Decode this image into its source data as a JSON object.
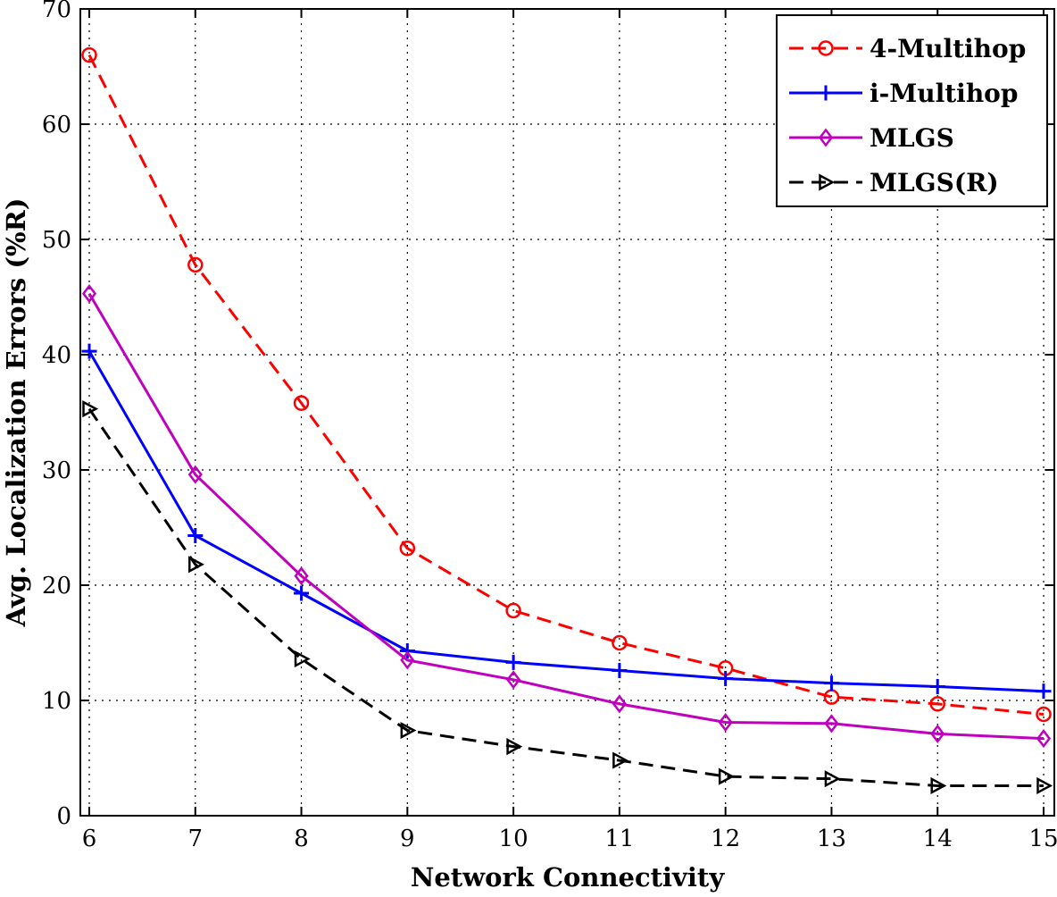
{
  "chart_data": {
    "type": "line",
    "title": "",
    "xlabel": "Network Connectivity",
    "ylabel": "Avg. Localization Errors (%R)",
    "xlim": [
      6,
      15
    ],
    "ylim": [
      0,
      70
    ],
    "xticks": [
      6,
      7,
      8,
      9,
      10,
      11,
      12,
      13,
      14,
      15
    ],
    "yticks": [
      0,
      10,
      20,
      30,
      40,
      50,
      60,
      70
    ],
    "grid": true,
    "legend_position": "top-right",
    "x": [
      6,
      7,
      8,
      9,
      10,
      11,
      12,
      13,
      14,
      15
    ],
    "series": [
      {
        "name": "4-Multihop",
        "color": "#ff0000",
        "line_style": "dashed",
        "marker": "circle",
        "values": [
          66,
          47.8,
          35.8,
          23.2,
          17.8,
          15.0,
          12.8,
          10.3,
          9.7,
          8.8
        ]
      },
      {
        "name": "i-Multihop",
        "color": "#0000ff",
        "line_style": "solid",
        "marker": "plus",
        "values": [
          40.3,
          24.3,
          19.3,
          14.3,
          13.3,
          12.6,
          11.9,
          11.5,
          11.2,
          10.8
        ]
      },
      {
        "name": "MLGS",
        "color": "#bf00bf",
        "line_style": "solid",
        "marker": "diamond",
        "values": [
          45.3,
          29.6,
          20.8,
          13.5,
          11.8,
          9.7,
          8.1,
          8.0,
          7.1,
          6.7
        ]
      },
      {
        "name": "MLGS(R)",
        "color": "#000000",
        "line_style": "dashed",
        "marker": "triangle-right",
        "values": [
          35.3,
          21.8,
          13.6,
          7.4,
          6.0,
          4.8,
          3.4,
          3.2,
          2.6,
          2.6
        ]
      }
    ]
  }
}
